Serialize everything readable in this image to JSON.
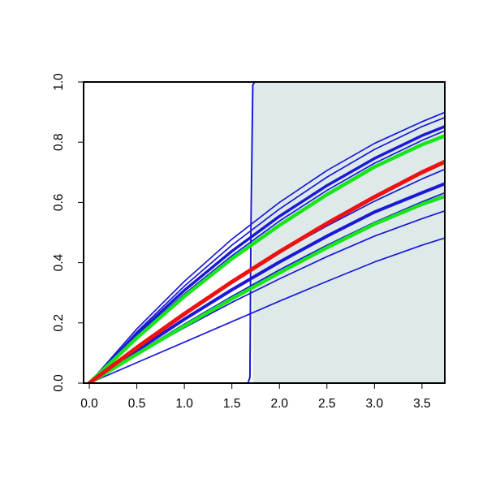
{
  "chart_data": {
    "type": "line",
    "title": "",
    "xlabel": "",
    "ylabel": "",
    "xlim": [
      -0.06,
      3.74
    ],
    "ylim": [
      0.0,
      1.0
    ],
    "x_ticks": [
      0.0,
      0.5,
      1.0,
      1.5,
      2.0,
      2.5,
      3.0,
      3.5
    ],
    "x_tick_labels": [
      "0.0",
      "0.5",
      "1.0",
      "1.5",
      "2.0",
      "2.5",
      "3.0",
      "3.5"
    ],
    "y_ticks": [
      0.0,
      0.2,
      0.4,
      0.6,
      0.8,
      1.0
    ],
    "y_tick_labels": [
      "0.0",
      "0.2",
      "0.4",
      "0.6",
      "0.8",
      "1.0"
    ],
    "grid": false,
    "legend": "none",
    "shaded_region": {
      "x_start": 1.72,
      "x_end": 3.74,
      "color": "#deeaea"
    },
    "step_curve": {
      "color": "#1a1ad6",
      "points": [
        [
          -0.06,
          0.0
        ],
        [
          1.67,
          0.0
        ],
        [
          1.69,
          0.02
        ],
        [
          1.7,
          0.5
        ],
        [
          1.72,
          0.99
        ],
        [
          1.74,
          1.0
        ],
        [
          3.74,
          1.0
        ]
      ]
    },
    "series": [
      {
        "color": "#1a1ad6",
        "width": 1.7,
        "points": [
          [
            0,
            0
          ],
          [
            0.5,
            0.18
          ],
          [
            1.0,
            0.338
          ],
          [
            1.5,
            0.478
          ],
          [
            2.0,
            0.6
          ],
          [
            2.5,
            0.706
          ],
          [
            3.0,
            0.796
          ],
          [
            3.5,
            0.868
          ],
          [
            3.74,
            0.899
          ]
        ]
      },
      {
        "color": "#1a1ad6",
        "width": 1.7,
        "points": [
          [
            0,
            0
          ],
          [
            0.5,
            0.17
          ],
          [
            1.0,
            0.322
          ],
          [
            1.5,
            0.458
          ],
          [
            2.0,
            0.578
          ],
          [
            2.5,
            0.684
          ],
          [
            3.0,
            0.776
          ],
          [
            3.5,
            0.852
          ],
          [
            3.74,
            0.882
          ]
        ]
      },
      {
        "color": "#1a1ad6",
        "width": 3.5,
        "points": [
          [
            0,
            0
          ],
          [
            0.5,
            0.162
          ],
          [
            1.0,
            0.308
          ],
          [
            1.5,
            0.438
          ],
          [
            2.0,
            0.554
          ],
          [
            2.5,
            0.656
          ],
          [
            3.0,
            0.746
          ],
          [
            3.5,
            0.822
          ],
          [
            3.74,
            0.852
          ]
        ]
      },
      {
        "color": "#1a1ad6",
        "width": 1.7,
        "points": [
          [
            0,
            0
          ],
          [
            0.5,
            0.155
          ],
          [
            1.0,
            0.296
          ],
          [
            1.5,
            0.423
          ],
          [
            2.0,
            0.538
          ],
          [
            2.5,
            0.64
          ],
          [
            3.0,
            0.73
          ],
          [
            3.5,
            0.806
          ],
          [
            3.74,
            0.838
          ]
        ]
      },
      {
        "color": "#1a1ad6",
        "width": 1.7,
        "points": [
          [
            0,
            0
          ],
          [
            0.5,
            0.122
          ],
          [
            1.0,
            0.234
          ],
          [
            1.5,
            0.338
          ],
          [
            2.0,
            0.434
          ],
          [
            2.5,
            0.522
          ],
          [
            3.0,
            0.604
          ],
          [
            3.5,
            0.678
          ],
          [
            3.74,
            0.71
          ]
        ]
      },
      {
        "color": "#1a1ad6",
        "width": 4.0,
        "points": [
          [
            0,
            0
          ],
          [
            0.5,
            0.108
          ],
          [
            1.0,
            0.212
          ],
          [
            1.5,
            0.31
          ],
          [
            2.0,
            0.402
          ],
          [
            2.5,
            0.488
          ],
          [
            3.0,
            0.568
          ],
          [
            3.5,
            0.632
          ],
          [
            3.74,
            0.662
          ]
        ]
      },
      {
        "color": "#1a1ad6",
        "width": 1.7,
        "points": [
          [
            0,
            0
          ],
          [
            0.5,
            0.1
          ],
          [
            1.0,
            0.196
          ],
          [
            1.5,
            0.288
          ],
          [
            2.0,
            0.376
          ],
          [
            2.5,
            0.458
          ],
          [
            3.0,
            0.534
          ],
          [
            3.5,
            0.602
          ],
          [
            3.74,
            0.632
          ]
        ]
      },
      {
        "color": "#1a1ad6",
        "width": 1.7,
        "points": [
          [
            0,
            0
          ],
          [
            0.5,
            0.095
          ],
          [
            1.0,
            0.184
          ],
          [
            1.5,
            0.268
          ],
          [
            2.0,
            0.346
          ],
          [
            2.5,
            0.42
          ],
          [
            3.0,
            0.488
          ],
          [
            3.5,
            0.546
          ],
          [
            3.74,
            0.572
          ]
        ]
      },
      {
        "color": "#1a1ad6",
        "width": 1.7,
        "points": [
          [
            0,
            0
          ],
          [
            0.5,
            0.068
          ],
          [
            1.0,
            0.136
          ],
          [
            1.5,
            0.204
          ],
          [
            2.0,
            0.272
          ],
          [
            2.5,
            0.338
          ],
          [
            3.0,
            0.402
          ],
          [
            3.5,
            0.458
          ],
          [
            3.74,
            0.482
          ]
        ]
      },
      {
        "color": "#19e619",
        "width": 4.5,
        "points": [
          [
            0,
            0
          ],
          [
            0.5,
            0.15
          ],
          [
            1.0,
            0.288
          ],
          [
            1.5,
            0.413
          ],
          [
            2.0,
            0.524
          ],
          [
            2.5,
            0.626
          ],
          [
            3.0,
            0.718
          ],
          [
            3.5,
            0.792
          ],
          [
            3.74,
            0.821
          ]
        ]
      },
      {
        "color": "#19e619",
        "width": 4.5,
        "points": [
          [
            0,
            0
          ],
          [
            0.5,
            0.096
          ],
          [
            1.0,
            0.19
          ],
          [
            1.5,
            0.28
          ],
          [
            2.0,
            0.366
          ],
          [
            2.5,
            0.45
          ],
          [
            3.0,
            0.528
          ],
          [
            3.5,
            0.594
          ],
          [
            3.74,
            0.62
          ]
        ]
      },
      {
        "color": "#ee1111",
        "width": 5.0,
        "points": [
          [
            0,
            0
          ],
          [
            0.5,
            0.118
          ],
          [
            1.0,
            0.23
          ],
          [
            1.5,
            0.336
          ],
          [
            2.0,
            0.436
          ],
          [
            2.5,
            0.53
          ],
          [
            3.0,
            0.618
          ],
          [
            3.5,
            0.7
          ],
          [
            3.74,
            0.735
          ]
        ]
      }
    ]
  }
}
